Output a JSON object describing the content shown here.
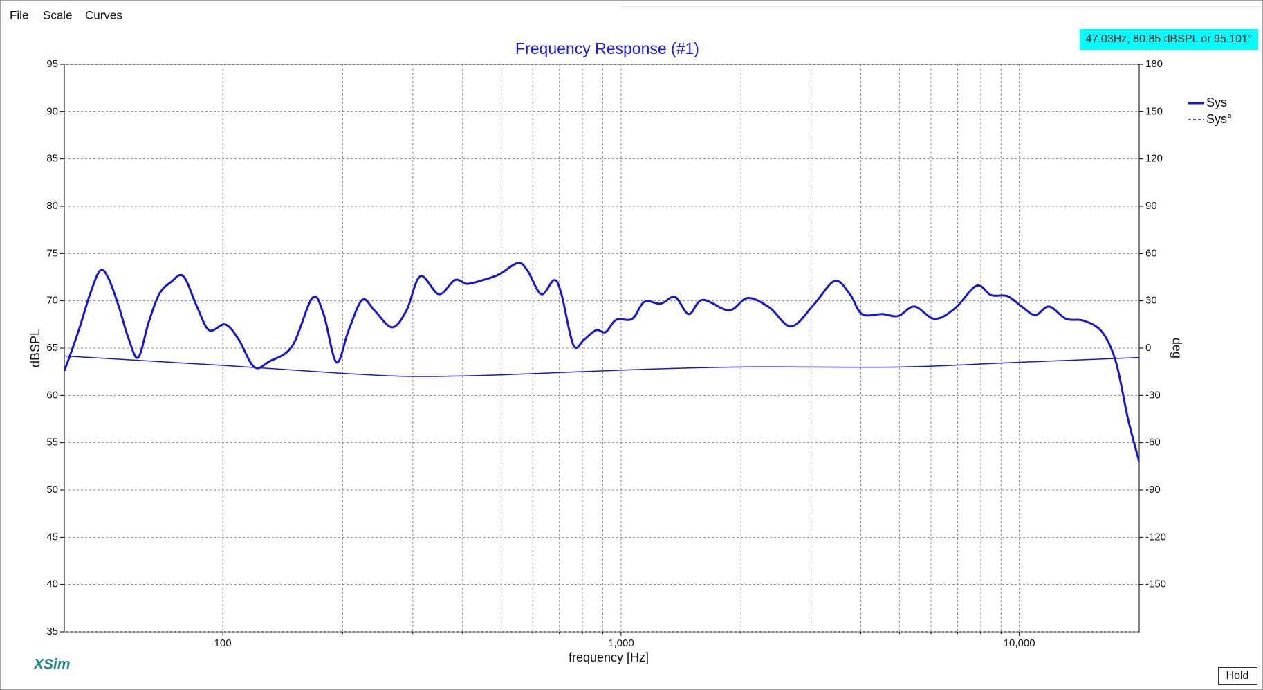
{
  "menu": [
    "File",
    "Scale",
    "Curves"
  ],
  "cursor_readout": "47.03Hz, 80.85 dBSPL or 95.101°",
  "brand": "XSim",
  "hold_button": "Hold",
  "chart_data": {
    "type": "line",
    "title": "Frequency Response (#1)",
    "xlabel": "frequency [Hz]",
    "ylabel": "dBSPL",
    "y2label": "deg",
    "xscale": "log",
    "xlim": [
      40,
      20000
    ],
    "xticks": [
      100,
      {
        "value": 1000,
        "label": "1,000"
      },
      {
        "value": 10000,
        "label": "10,000"
      }
    ],
    "xminor": [
      200,
      300,
      400,
      500,
      600,
      700,
      800,
      900,
      2000,
      3000,
      4000,
      5000,
      6000,
      7000,
      8000,
      9000
    ],
    "ylim": [
      35,
      95
    ],
    "yticks": [
      35,
      40,
      45,
      50,
      55,
      60,
      65,
      70,
      75,
      80,
      85,
      90,
      95
    ],
    "y2lim": [
      -180,
      180
    ],
    "y2ticks": [
      -150,
      -120,
      -90,
      -60,
      -30,
      0,
      30,
      60,
      90,
      120,
      150,
      180
    ],
    "grid": true,
    "legend": "right",
    "series": [
      {
        "name": "Sys",
        "color": "#1414e6",
        "x": [
          40,
          41.4,
          43.8,
          46.4,
          49.2,
          51.6,
          54.8,
          58,
          61.3,
          65.1,
          69.2,
          74.2,
          79.6,
          86.1,
          92.4,
          101.4,
          109.3,
          119.9,
          131,
          149.3,
          167.8,
          179.1,
          192.9,
          207,
          223.9,
          240.2,
          266.1,
          289.3,
          313.3,
          348.8,
          382.8,
          410.7,
          450.6,
          494.4,
          550.6,
          582.1,
          630.4,
          679.3,
          708.5,
          759.6,
          807.1,
          865.5,
          915,
          972.4,
          1067,
          1145,
          1257,
          1367,
          1479,
          1602,
          1867,
          2080,
          2358,
          2674,
          3048,
          3439,
          3756,
          4029,
          4527,
          4969,
          5454,
          6131,
          6889,
          7815,
          8493,
          9330,
          10140,
          10970,
          11880,
          13100,
          14510,
          16150,
          17490,
          18750,
          20000
        ],
        "values": [
          62.6,
          64.3,
          67.3,
          70.7,
          73.2,
          72.4,
          69.4,
          66,
          64,
          67.7,
          70.7,
          72,
          72.6,
          69.4,
          66.9,
          67.5,
          66,
          63,
          63.6,
          65.2,
          70.3,
          68.6,
          63.5,
          66.9,
          70.1,
          69,
          67.2,
          69,
          72.6,
          70.7,
          72.2,
          71.8,
          72.2,
          72.8,
          74,
          73.2,
          70.7,
          72.2,
          70.7,
          65.3,
          65.9,
          66.9,
          66.7,
          68,
          68.1,
          69.9,
          69.7,
          70.4,
          68.6,
          70.1,
          69,
          70.3,
          69.3,
          67.3,
          69.6,
          72.1,
          70.7,
          68.6,
          68.6,
          68.4,
          69.4,
          68.1,
          69.2,
          71.6,
          70.6,
          70.5,
          69.4,
          68.5,
          69.4,
          68.1,
          67.9,
          66.7,
          63.5,
          57.5,
          53
        ]
      },
      {
        "name": "Sys°",
        "color": "#1414e6",
        "axis": "y2",
        "x": [
          40,
          100,
          200,
          300,
          500,
          1000,
          2000,
          5000,
          10000,
          20000
        ],
        "values": [
          -5,
          -11,
          -16,
          -18,
          -17,
          -14,
          -12,
          -12,
          -9,
          -6
        ]
      }
    ]
  }
}
